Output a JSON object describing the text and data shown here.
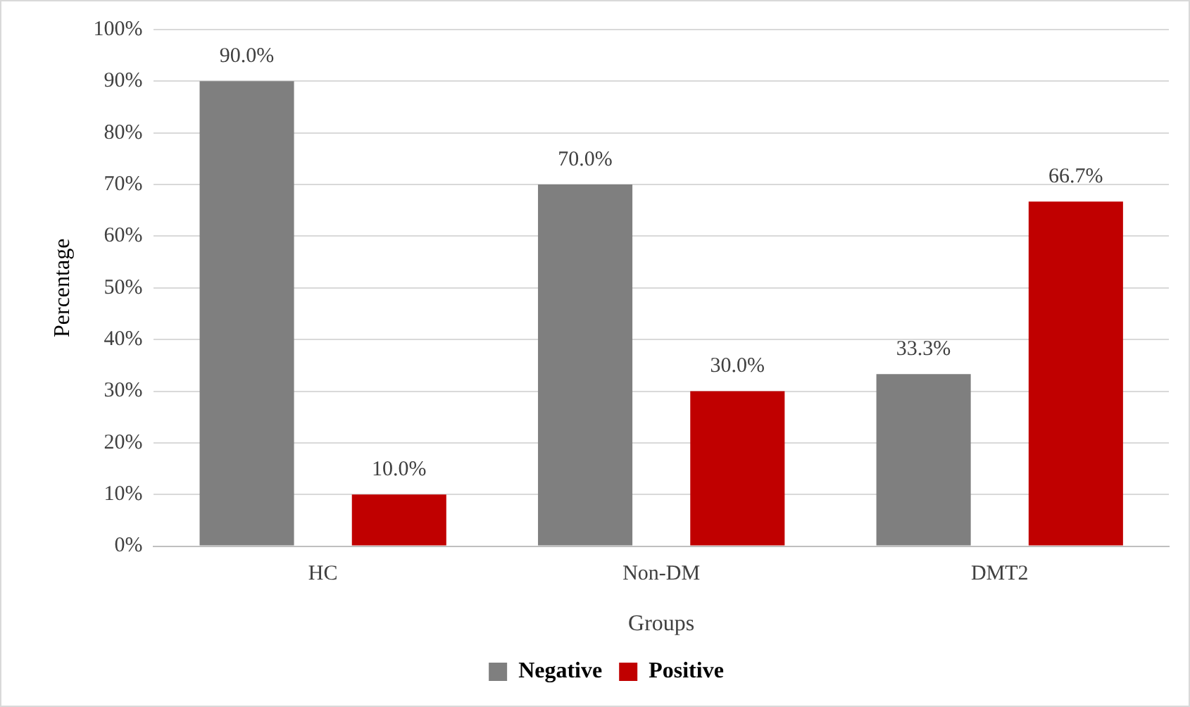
{
  "chart_data": {
    "type": "bar",
    "xlabel": "Groups",
    "ylabel": "Percentage",
    "categories": [
      "HC",
      "Non-DM",
      "DMT2"
    ],
    "series": [
      {
        "name": "Negative",
        "color": "#7f7f7f",
        "values": [
          90.0,
          70.0,
          33.3
        ],
        "value_labels": [
          "90.0%",
          "70.0%",
          "33.3%"
        ]
      },
      {
        "name": "Positive",
        "color": "#c00000",
        "values": [
          10.0,
          30.0,
          66.7
        ],
        "value_labels": [
          "10.0%",
          "30.0%",
          "66.7%"
        ]
      }
    ],
    "ylim": [
      0,
      100
    ],
    "yticks": [
      {
        "value": 0,
        "label": "0%"
      },
      {
        "value": 10,
        "label": "10%"
      },
      {
        "value": 20,
        "label": "20%"
      },
      {
        "value": 30,
        "label": "30%"
      },
      {
        "value": 40,
        "label": "40%"
      },
      {
        "value": 50,
        "label": "50%"
      },
      {
        "value": 60,
        "label": "60%"
      },
      {
        "value": 70,
        "label": "70%"
      },
      {
        "value": 80,
        "label": "80%"
      },
      {
        "value": 90,
        "label": "90%"
      },
      {
        "value": 100,
        "label": "100%"
      }
    ],
    "grid": "y",
    "legend": "bottom"
  }
}
